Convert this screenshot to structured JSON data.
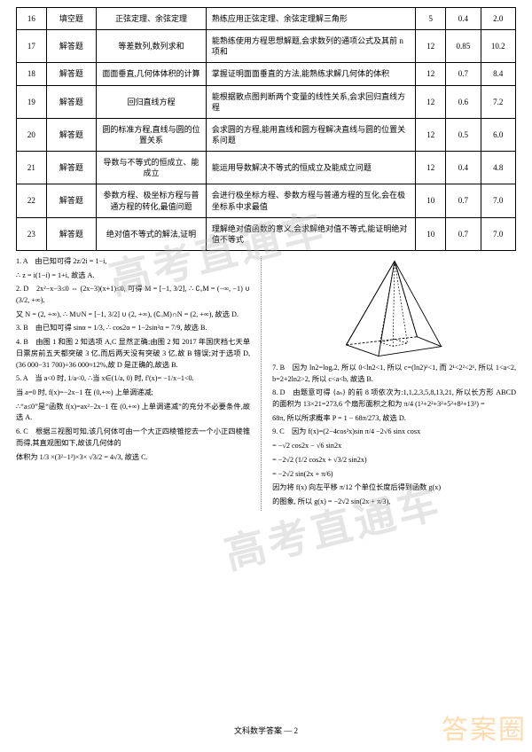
{
  "table": {
    "col_widths": [
      "6%",
      "10%",
      "22%",
      "42%",
      "6%",
      "7%",
      "7%"
    ],
    "rows": [
      {
        "num": "16",
        "type": "填空题",
        "topic": "正弦定理、余弦定理",
        "skill": "熟练应用正弦定理、余弦定理解三角形",
        "c1": "5",
        "c2": "0.4",
        "c3": "2.0"
      },
      {
        "num": "17",
        "type": "解答题",
        "topic": "等差数列,数列求和",
        "skill": "能熟练使用方程思想解题,会求数列的通项公式及其前 n 项和",
        "c1": "12",
        "c2": "0.85",
        "c3": "10.2"
      },
      {
        "num": "18",
        "type": "解答题",
        "topic": "面面垂直,几何体体积的计算",
        "skill": "掌握证明面面垂直的方法,能熟练求解几何体的体积",
        "c1": "12",
        "c2": "0.7",
        "c3": "8.4"
      },
      {
        "num": "19",
        "type": "解答题",
        "topic": "回归直线方程",
        "skill": "能根据散点图判断两个变量的线性关系,会求回归直线方程",
        "c1": "12",
        "c2": "0.6",
        "c3": "7.2"
      },
      {
        "num": "20",
        "type": "解答题",
        "topic": "圆的标准方程,直线与圆的位置关系",
        "skill": "会求圆的方程,能用直线和圆方程解决直线与圆的位置关系问题",
        "c1": "12",
        "c2": "0.5",
        "c3": "6.0"
      },
      {
        "num": "21",
        "type": "解答题",
        "topic": "导数与不等式的恒成立、能成立",
        "skill": "能运用导数解决不等式的恒成立及能成立问题",
        "c1": "12",
        "c2": "0.4",
        "c3": "4.8"
      },
      {
        "num": "22",
        "type": "解答题",
        "topic": "参数方程、极坐标方程与普通方程的转化,最值问题",
        "skill": "会进行极坐标方程、参数方程与普通方程的互化,会在极坐标系中求最值",
        "c1": "10",
        "c2": "0.7",
        "c3": "7.0"
      },
      {
        "num": "23",
        "type": "解答题",
        "topic": "绝对值不等式的解法,证明",
        "skill": "理解绝对值函数的意义,会求解绝对值不等式,能证明绝对值不等式",
        "c1": "10",
        "c2": "0.7",
        "c3": "7.0"
      }
    ]
  },
  "solutions_left": [
    {
      "label": "1. A",
      "body": "由已知可得 2z/2i = 1−i,"
    },
    {
      "label": "",
      "body": "∴ z = i(1−i) = 1+i, 故选 A."
    },
    {
      "label": "2. D",
      "body": "2x²−x−3≤0 ⇔ (2x−3)(x+1)≤0, 可得 M = [−1, 3/2], ∴ ∁ᵤM = (−∞, −1) ∪ (3/2, +∞)."
    },
    {
      "label": "",
      "body": "又 N = (2, +∞), ∴ M∪N = [−1, 3/2] ∪ (2, +∞), (∁ᵤM)∩N = (2, +∞), 故选 D."
    },
    {
      "label": "3. B",
      "body": "由已知可得 sinα = 1/3, ∴ cos2α = 1−2sin²α = 7/9, 故选 B."
    },
    {
      "label": "4. B",
      "body": "由图 1 和图 2 知选项 A,C 显然正确;由图 2 知 2017 年国庆档七天单日票房前五天都突破 3 亿,而后两天没有突破 3 亿,故 B 错误;对于选项 D,(36 000−31 700)÷36 000≈12%,故 D 是正确的,故选 B."
    },
    {
      "label": "5. A",
      "body": "当 a<0 时, 1/a<0, ∴当 x∈(1/a, 0) 时, f'(x)= −1/x−1<0."
    },
    {
      "label": "",
      "body": "当 a=0 时, f(x)=−2x−1 在 (0,+∞) 上单调递减;"
    },
    {
      "label": "",
      "body": "∴“a≤0”是“函数 f(x)=ax²−2x−1 在 (0,+∞) 上单调递减”的充分不必要条件,故选 A."
    },
    {
      "label": "6. C",
      "body": "根据三视图可知,该几何体可由一个大正四棱锥挖去一个小正四棱锥而得,其直观图如下,故该几何体的"
    },
    {
      "label": "",
      "body": "体积为 1/3 ×(3²−1²)×3× √3/2 = 4√3, 故选 C."
    }
  ],
  "solutions_right": [
    {
      "label": "7. B",
      "body": "因为 ln2=logₑ2, 所以 0<ln2<1, 所以 c=(ln2)²<1, 而 2¹<2²<2¹, 所以 1<a<2, b=2+2ln2>2, 所以 c<a<b, 故选 B."
    },
    {
      "label": "8. D",
      "body": "由题意可得 {aₙ} 的前 8 项依次为:1,1,2,3,5,8,13,21, 所以长方形 ABCD 的面积为 13×21=273,6 个扇形面积之和为 π/4 (1²+2²+3²+5²+8²+13²) ="
    },
    {
      "label": "",
      "body": "68π, 所以所求概率 P = 1 − 68π/273, 故选 D."
    },
    {
      "label": "9. C",
      "body": "因为 f(x)=(2−4cos²x)sin π/4 −2√6 sinx cosx"
    },
    {
      "label": "",
      "body": "= −√2 cos2x − √6 sin2x"
    },
    {
      "label": "",
      "body": "= −2√2 (1/2 cos2x + √3/2 sin2x)"
    },
    {
      "label": "",
      "body": "= −2√2 sin(2x + π/6)"
    },
    {
      "label": "",
      "body": "因为将 f(x) 向左平移 π/12 个单位长度后得到函数 g(x)"
    },
    {
      "label": "",
      "body": "的图象, 所以 g(x) = −2√2 sin(2x + π/3),"
    }
  ],
  "footer": "文科数学答案 — 2",
  "watermark": "高考直通车",
  "stamp": "答案圈",
  "colors": {
    "text": "#000000",
    "border": "#000000",
    "watermark": "rgba(180,180,180,0.35)",
    "stamp": "rgba(255,140,0,0.32)",
    "bg": "#ffffff"
  }
}
